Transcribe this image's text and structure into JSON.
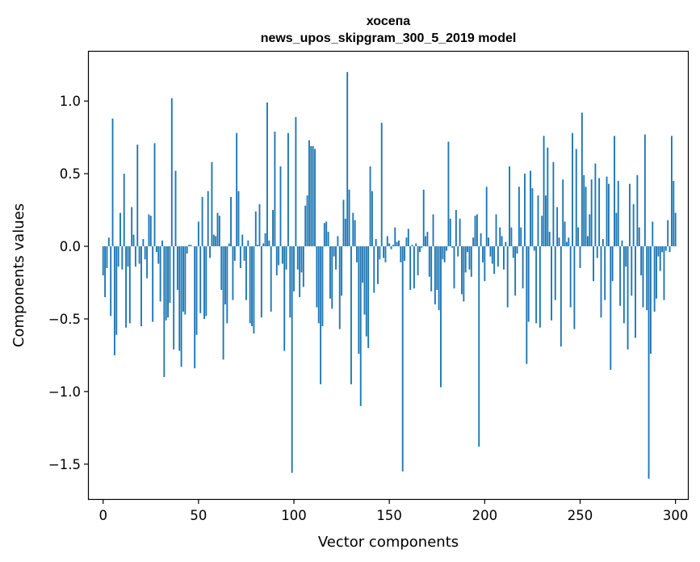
{
  "chart_data": {
    "type": "bar",
    "title": "хосепа",
    "subtitle": "news_upos_skipgram_300_5_2019 model",
    "xlabel": "Vector components",
    "ylabel": "Components values",
    "xlim": [
      -7.5,
      306.5
    ],
    "ylim": [
      -1.74,
      1.34
    ],
    "xticks": [
      0,
      50,
      100,
      150,
      200,
      250,
      300
    ],
    "xtick_labels": [
      "0",
      "50",
      "100",
      "150",
      "200",
      "250",
      "300"
    ],
    "yticks": [
      -1.5,
      -1.0,
      -0.5,
      0.0,
      0.5,
      1.0
    ],
    "ytick_labels": [
      "−1.5",
      "−1.0",
      "−0.5",
      "0.0",
      "0.5",
      "1.0"
    ],
    "grid": false,
    "bar_color": "#1f77b4",
    "values": [
      -0.2,
      -0.35,
      -0.15,
      0.06,
      -0.48,
      0.88,
      -0.75,
      -0.61,
      -0.14,
      0.23,
      -0.16,
      0.5,
      -0.56,
      -0.14,
      -0.53,
      0.27,
      0.08,
      -0.14,
      0.7,
      -0.12,
      -0.55,
      0.05,
      -0.09,
      -0.22,
      0.22,
      0.21,
      -0.52,
      0.71,
      -0.04,
      -0.12,
      -0.38,
      0.04,
      -0.9,
      -0.51,
      -0.49,
      -0.39,
      1.02,
      -0.71,
      0.52,
      -0.3,
      -0.72,
      -0.83,
      -0.45,
      -0.47,
      -0.05,
      0.01,
      0.01,
      0.0,
      -0.84,
      -0.61,
      0.17,
      -0.46,
      0.34,
      -0.5,
      -0.48,
      0.38,
      -0.08,
      0.58,
      0.08,
      0.07,
      0.23,
      0.21,
      -0.3,
      -0.78,
      -0.4,
      -0.53,
      0.02,
      0.34,
      -0.37,
      -0.1,
      0.78,
      0.38,
      -0.15,
      0.08,
      -0.1,
      -0.37,
      0.04,
      -0.53,
      -0.55,
      -0.6,
      0.24,
      0.01,
      0.29,
      -0.49,
      0.02,
      0.09,
      0.99,
      0.04,
      -0.45,
      0.25,
      0.79,
      -0.2,
      -0.13,
      0.55,
      -0.12,
      -0.72,
      -0.16,
      0.78,
      -0.49,
      -1.56,
      -0.31,
      0.89,
      -0.16,
      -0.35,
      -0.18,
      -0.28,
      0.28,
      0.35,
      0.73,
      0.69,
      0.69,
      0.67,
      -0.42,
      -0.53,
      -0.95,
      -0.55,
      0.16,
      0.17,
      0.1,
      -0.36,
      -0.43,
      -0.07,
      -0.16,
      0.07,
      -0.57,
      -0.34,
      0.32,
      0.19,
      1.2,
      0.39,
      -0.95,
      0.23,
      0.18,
      -0.11,
      -0.74,
      -1.1,
      -0.25,
      -0.47,
      -0.62,
      -0.7,
      0.55,
      0.38,
      -0.32,
      0.05,
      -0.26,
      -0.09,
      0.85,
      -0.08,
      -0.11,
      0.07,
      0.02,
      -0.02,
      0.01,
      0.13,
      0.03,
      0.04,
      -0.11,
      -1.55,
      -0.1,
      0.06,
      0.12,
      -0.3,
      0.01,
      -0.29,
      0.02,
      -0.2,
      -0.04,
      -0.01,
      0.39,
      0.07,
      0.1,
      -0.21,
      -0.31,
      0.22,
      -0.4,
      -0.3,
      -0.44,
      -0.97,
      -0.09,
      -0.11,
      -0.03,
      0.72,
      0.19,
      -0.01,
      -0.29,
      0.25,
      -0.07,
      0.19,
      -0.33,
      -0.38,
      -0.18,
      -0.04,
      -0.16,
      -0.21,
      0.06,
      0.21,
      0.22,
      -1.38,
      0.09,
      -0.11,
      -0.24,
      0.41,
      0.06,
      -0.07,
      -0.12,
      -0.19,
      0.22,
      -0.14,
      0.13,
      0.07,
      -0.16,
      0.03,
      -0.42,
      0.55,
      0.13,
      -0.08,
      -0.34,
      -0.05,
      0.41,
      0.13,
      -0.29,
      0.5,
      -0.81,
      -0.52,
      0.52,
      0.4,
      -0.03,
      -0.53,
      0.35,
      -0.56,
      0.21,
      0.76,
      0.35,
      0.68,
      0.1,
      -0.51,
      0.58,
      -0.37,
      0.27,
      0.06,
      -0.69,
      0.46,
      0.17,
      0.03,
      0.06,
      -0.42,
      0.78,
      -0.57,
      0.67,
      0.13,
      -0.15,
      0.92,
      0.49,
      0.41,
      0.07,
      0.22,
      0.46,
      -0.24,
      0.57,
      -0.08,
      0.47,
      -0.49,
      0.05,
      -0.37,
      0.48,
      0.43,
      -0.85,
      -0.24,
      0.76,
      0.23,
      0.45,
      -0.41,
      0.04,
      -0.53,
      -0.14,
      -0.71,
      0.43,
      -0.34,
      0.29,
      -0.63,
      0.49,
      0.13,
      -0.2,
      -0.42,
      0.77,
      -0.44,
      -1.6,
      -0.74,
      0.17,
      -0.45,
      -0.36,
      -0.07,
      -0.17,
      -0.04,
      -0.37,
      -0.03,
      0.18,
      -0.04,
      0.76,
      0.45,
      0.23
    ]
  }
}
